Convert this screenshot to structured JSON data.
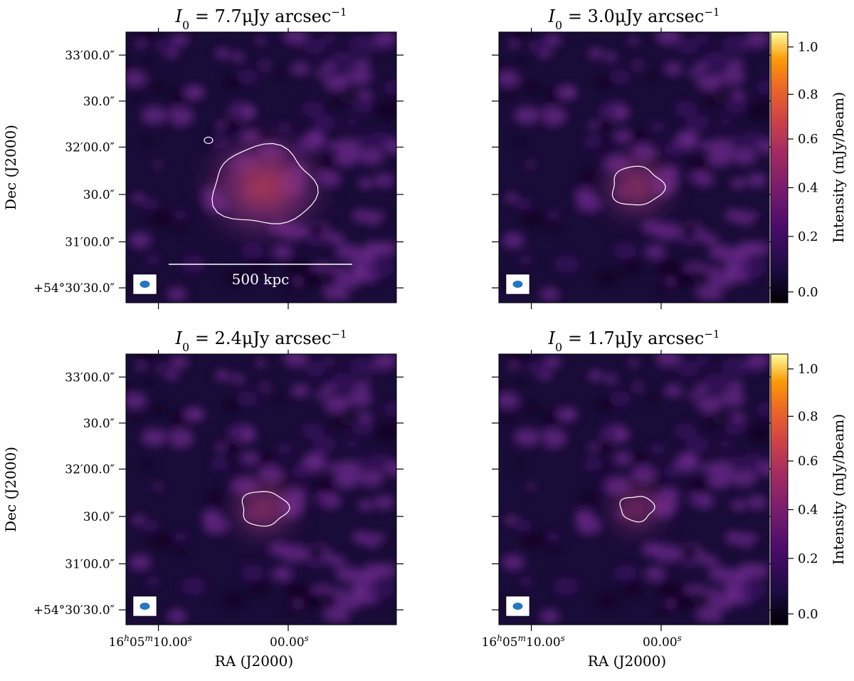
{
  "figure": {
    "panels": [
      {
        "title_prefix": "I",
        "title_sub": "0",
        "title_rest": " = 7.7μJy arcsec",
        "title_sup": "−1",
        "scalebar_label": "500 kpc",
        "contour_scale": 1.0
      },
      {
        "title_prefix": "I",
        "title_sub": "0",
        "title_rest": " = 3.0μJy arcsec",
        "title_sup": "−1",
        "scalebar_label": "",
        "contour_scale": 0.42
      },
      {
        "title_prefix": "I",
        "title_sub": "0",
        "title_rest": " = 2.4μJy arcsec",
        "title_sup": "−1",
        "scalebar_label": "",
        "contour_scale": 0.36
      },
      {
        "title_prefix": "I",
        "title_sub": "0",
        "title_rest": " = 1.7μJy arcsec",
        "title_sup": "−1",
        "scalebar_label": "",
        "contour_scale": 0.22
      }
    ],
    "ylabel": "Dec (J2000)",
    "xlabel": "RA (J2000)",
    "ytick_labels": [
      "33′00.0″",
      "30.0″",
      "32′00.0″",
      "30.0″",
      "31′00.0″",
      "+54°30′30.0″"
    ],
    "xtick_labels": [
      {
        "main": "16",
        "sup1": "h",
        "mid": "05",
        "sup2": "m",
        "tail": "10.00",
        "sup3": "s"
      },
      {
        "main": "",
        "sup1": "",
        "mid": "",
        "sup2": "",
        "tail": "00.00",
        "sup3": "s"
      }
    ],
    "colorbar_label": "Intensity (mJy/beam)",
    "colorbar_ticks": [
      "0.0",
      "0.2",
      "0.4",
      "0.6",
      "0.8",
      "1.0"
    ]
  },
  "chart_data": {
    "type": "heatmap",
    "panels": [
      {
        "title": "I_0 = 7.7 μJy arcsec^-1"
      },
      {
        "title": "I_0 = 3.0 μJy arcsec^-1"
      },
      {
        "title": "I_0 = 2.4 μJy arcsec^-1"
      },
      {
        "title": "I_0 = 1.7 μJy arcsec^-1"
      }
    ],
    "xlabel": "RA (J2000)",
    "ylabel": "Dec (J2000)",
    "colorbar": {
      "label": "Intensity (mJy/beam)",
      "range": [
        0.0,
        1.0
      ],
      "ticks": [
        0.0,
        0.2,
        0.4,
        0.6,
        0.8,
        1.0
      ],
      "colormap": "inferno"
    },
    "colors": {
      "background_low": "#1a0c38",
      "mid": "#6a2a8a",
      "peak": "#c0404a",
      "contour": "#ffffff",
      "beam": "#1f78c8"
    }
  }
}
